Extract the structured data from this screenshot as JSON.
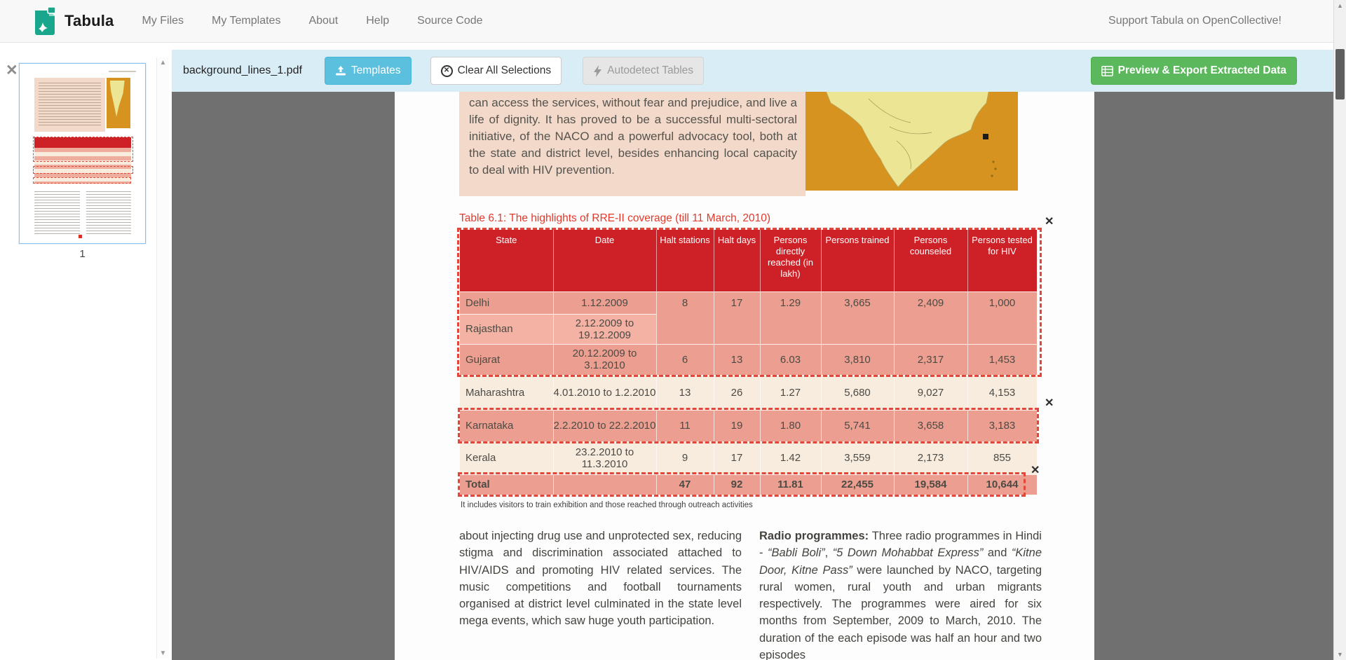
{
  "navbar": {
    "brand": "Tabula",
    "items": [
      "My Files",
      "My Templates",
      "About",
      "Help",
      "Source Code"
    ],
    "support_link": "Support Tabula on OpenCollective!"
  },
  "toolbar": {
    "filename": "background_lines_1.pdf",
    "templates_label": "Templates",
    "clear_label": "Clear All Selections",
    "autodetect_label": "Autodetect Tables",
    "export_label": "Preview & Export Extracted Data"
  },
  "sidebar": {
    "page_number": "1"
  },
  "pdf": {
    "intro_paragraph": "can access the services, without fear and prejudice, and live a life of dignity. It has proved to be a successful multi-sectoral initiative, of the NACO and a powerful advocacy tool, both at the state and district level, besides enhancing local capacity to deal with HIV prevention.",
    "table_title": "Table 6.1: The highlights of RRE-II coverage (till 11 March, 2010)",
    "table": {
      "headers": [
        "State",
        "Date",
        "Halt stations",
        "Halt days",
        "Persons directly reached (in lakh)",
        "Persons trained",
        "Persons counseled",
        "Persons tested for HIV"
      ],
      "rows": [
        [
          "Delhi",
          "1.12.2009",
          "8",
          "17",
          "1.29",
          "3,665",
          "2,409",
          "1,000"
        ],
        [
          "Rajasthan",
          "2.12.2009 to 19.12.2009",
          "",
          "",
          "",
          "",
          "",
          ""
        ],
        [
          "Gujarat",
          "20.12.2009 to 3.1.2010",
          "6",
          "13",
          "6.03",
          "3,810",
          "2,317",
          "1,453"
        ],
        [
          "Maharashtra",
          "4.01.2010 to 1.2.2010",
          "13",
          "26",
          "1.27",
          "5,680",
          "9,027",
          "4,153"
        ],
        [
          "Karnataka",
          "2.2.2010 to 22.2.2010",
          "11",
          "19",
          "1.80",
          "5,741",
          "3,658",
          "3,183"
        ],
        [
          "Kerala",
          "23.2.2010 to 11.3.2010",
          "9",
          "17",
          "1.42",
          "3,559",
          "2,173",
          "855"
        ],
        [
          "Total",
          "",
          "47",
          "92",
          "11.81",
          "22,455",
          "19,584",
          "10,644"
        ]
      ]
    },
    "footnote": "It includes visitors to train exhibition and those reached through outreach activities",
    "left_column": "about injecting drug use and unprotected sex, reducing stigma and discrimination associated attached to HIV/AIDS and promoting HIV related services. The music competitions and football tournaments organised at district level culminated in the state level mega events, which saw huge youth participation.",
    "right_column_segments": [
      {
        "t": "Radio programmes:",
        "b": true
      },
      {
        "t": " Three radio programmes in Hindi - "
      },
      {
        "t": "“Babli Boli”",
        "i": true
      },
      {
        "t": ", "
      },
      {
        "t": "“5 Down Mohabbat Express”",
        "i": true
      },
      {
        "t": " and "
      },
      {
        "t": "“Kitne Door, Kitne Pass”",
        "i": true
      },
      {
        "t": " were launched by NACO, targeting rural women, rural youth and urban migrants respectively. The programmes were aired for six months from September, 2009 to March, 2010. The duration of the each episode was half an hour and two episodes"
      }
    ]
  },
  "colors": {
    "toolbar_bg": "#d9edf7",
    "templates_blue": "#5bc0de",
    "export_green": "#5cb85c",
    "selection_red": "#e2473c",
    "table_header_red": "#ce2127",
    "row_selected_salmon": "#ec9f90",
    "row_light_pink": "#f3b2a3",
    "row_cream": "#f8ecdf",
    "peach_bg": "#f3d9c9",
    "map_orange": "#d79320",
    "brand_teal": "#18a78c"
  }
}
